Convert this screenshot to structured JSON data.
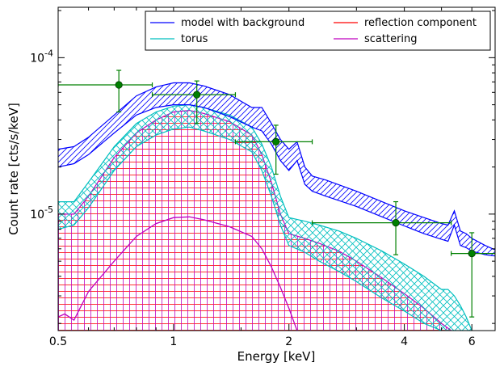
{
  "chart_data": {
    "type": "line",
    "xlabel": "Energy [keV]",
    "ylabel": "Count rate [cts/s/keV]",
    "xscale": "log",
    "yscale": "log",
    "xlim": [
      0.5,
      6.9
    ],
    "ylim": [
      1.8e-06,
      0.00021
    ],
    "x_ticks": [
      0.5,
      1,
      2,
      4,
      6
    ],
    "x_tick_labels": [
      "0.5",
      "1",
      "2",
      "4",
      "6"
    ],
    "y_ticks": [
      1e-05,
      0.0001
    ],
    "y_tick_labels": [
      {
        "base": "10",
        "exp": "-5"
      },
      {
        "base": "10",
        "exp": "-4"
      }
    ],
    "legend_position": "top-right",
    "legend": [
      {
        "label": "model with background",
        "color": "#0000ff"
      },
      {
        "label": "reflection component",
        "color": "#ff0000"
      },
      {
        "label": "torus",
        "color": "#00bfbf"
      },
      {
        "label": "scattering",
        "color": "#bf00bf"
      }
    ],
    "colors": {
      "model": "#0000ff",
      "reflection": "#ff0000",
      "torus": "#00bfbf",
      "scattering": "#bf00bf",
      "data": "#008000"
    },
    "bands": [
      {
        "name": "model with background",
        "color": "#0000ff",
        "hatch": "diagonal",
        "x": [
          0.5,
          0.55,
          0.6,
          0.7,
          0.8,
          0.9,
          1.0,
          1.1,
          1.2,
          1.4,
          1.6,
          1.7,
          1.8,
          1.9,
          2.0,
          2.1,
          2.2,
          2.3,
          2.5,
          3.0,
          3.5,
          4.0,
          4.5,
          5.0,
          5.2,
          5.4,
          5.6,
          5.8,
          6.0,
          6.5,
          6.9
        ],
        "upper": [
          2.6e-05,
          2.7e-05,
          3.1e-05,
          4.3e-05,
          5.7e-05,
          6.5e-05,
          6.9e-05,
          6.9e-05,
          6.6e-05,
          5.8e-05,
          4.8e-05,
          4.8e-05,
          3.8e-05,
          3e-05,
          2.6e-05,
          2.9e-05,
          2e-05,
          1.75e-05,
          1.65e-05,
          1.4e-05,
          1.2e-05,
          1.05e-05,
          9.5e-06,
          8.7e-06,
          8.5e-06,
          1.05e-05,
          7.8e-06,
          7.5e-06,
          7e-06,
          6.3e-06,
          5.9e-06
        ],
        "lower": [
          2e-05,
          2.1e-05,
          2.4e-05,
          3.3e-05,
          4.3e-05,
          4.8e-05,
          5e-05,
          5e-05,
          4.8e-05,
          4.2e-05,
          3.6e-05,
          3.4e-05,
          2.8e-05,
          2.2e-05,
          1.9e-05,
          2.2e-05,
          1.55e-05,
          1.4e-05,
          1.3e-05,
          1.12e-05,
          9.6e-06,
          8.4e-06,
          7.5e-06,
          6.9e-06,
          6.7e-06,
          8.5e-06,
          6.3e-06,
          6.1e-06,
          5.8e-06,
          5.5e-06,
          5.4e-06
        ]
      },
      {
        "name": "torus",
        "color": "#00bfbf",
        "hatch": "cross",
        "x": [
          0.5,
          0.55,
          0.6,
          0.7,
          0.8,
          0.9,
          1.0,
          1.1,
          1.2,
          1.4,
          1.6,
          1.7,
          1.8,
          1.9,
          2.0,
          2.2,
          2.4,
          2.7,
          3.0,
          3.5,
          4.0,
          4.5,
          5.0,
          5.2,
          5.4,
          5.6,
          5.8,
          6.0
        ],
        "upper": [
          1.2e-05,
          1.2e-05,
          1.6e-05,
          2.7e-05,
          3.8e-05,
          4.5e-05,
          4.9e-05,
          5e-05,
          4.8e-05,
          4.3e-05,
          3.6e-05,
          2.8e-05,
          2e-05,
          1.3e-05,
          9.5e-06,
          9e-06,
          8.5e-06,
          7.8e-06,
          7e-06,
          5.8e-06,
          4.8e-06,
          4e-06,
          3.3e-06,
          3.3e-06,
          3e-06,
          2.6e-06,
          2.2e-06,
          1.8e-06
        ],
        "lower": [
          8e-06,
          8.5e-06,
          1.1e-05,
          1.9e-05,
          2.7e-05,
          3.2e-05,
          3.5e-05,
          3.6e-05,
          3.4e-05,
          3e-05,
          2.5e-05,
          1.9e-05,
          1.3e-05,
          8.5e-06,
          6.3e-06,
          5.7e-06,
          5e-06,
          4.3e-06,
          3.7e-06,
          2.9e-06,
          2.4e-06,
          2e-06,
          1.8e-06,
          1.8e-06,
          1.8e-06,
          1.8e-06,
          1.8e-06,
          1.8e-06
        ]
      }
    ],
    "hatched_region": {
      "name": "reflection component",
      "colors": [
        "#ff0000",
        "#bf00bf"
      ],
      "x": [
        0.5,
        0.55,
        0.6,
        0.7,
        0.8,
        0.9,
        1.0,
        1.1,
        1.2,
        1.4,
        1.6,
        1.7,
        1.8,
        1.9,
        2.0,
        2.2,
        2.4,
        2.7,
        3.0,
        3.5,
        4.0,
        4.5,
        5.0,
        5.3
      ],
      "upper": [
        1e-05,
        1e-05,
        1.3e-05,
        2.3e-05,
        3.3e-05,
        4e-05,
        4.5e-05,
        4.6e-05,
        4.4e-05,
        3.9e-05,
        3.2e-05,
        2.4e-05,
        1.6e-05,
        1e-05,
        7.5e-06,
        7e-06,
        6.5e-06,
        5.8e-06,
        5e-06,
        3.9e-06,
        3.1e-06,
        2.5e-06,
        2e-06,
        1.8e-06
      ]
    },
    "series": [
      {
        "name": "scattering",
        "color": "#bf00bf",
        "x": [
          0.5,
          0.52,
          0.55,
          0.6,
          0.7,
          0.8,
          0.9,
          1.0,
          1.1,
          1.2,
          1.4,
          1.6,
          1.7,
          1.8,
          1.9,
          2.0,
          2.1
        ],
        "y": [
          2.2e-06,
          2.3e-06,
          2.1e-06,
          3.2e-06,
          5e-06,
          7.2e-06,
          8.7e-06,
          9.5e-06,
          9.6e-06,
          9.2e-06,
          8.3e-06,
          7.2e-06,
          6e-06,
          4.6e-06,
          3.4e-06,
          2.5e-06,
          1.8e-06
        ]
      }
    ],
    "points": [
      {
        "x": 0.72,
        "y": 6.7e-05,
        "xerr": [
          0.5,
          0.88
        ],
        "yerr": [
          4.5e-05,
          8.3e-05
        ]
      },
      {
        "x": 1.15,
        "y": 5.8e-05,
        "xerr": [
          0.88,
          1.45
        ],
        "yerr": [
          3.8e-05,
          7.1e-05
        ]
      },
      {
        "x": 1.85,
        "y": 2.9e-05,
        "xerr": [
          1.45,
          2.3
        ],
        "yerr": [
          1.8e-05,
          3.7e-05
        ]
      },
      {
        "x": 3.8,
        "y": 8.8e-06,
        "xerr": [
          2.3,
          5.3
        ],
        "yerr": [
          5.5e-06,
          1.2e-05
        ]
      },
      {
        "x": 6.0,
        "y": 5.6e-06,
        "xerr": [
          5.3,
          6.9
        ],
        "yerr": [
          2.2e-06,
          7.6e-06
        ]
      }
    ]
  }
}
